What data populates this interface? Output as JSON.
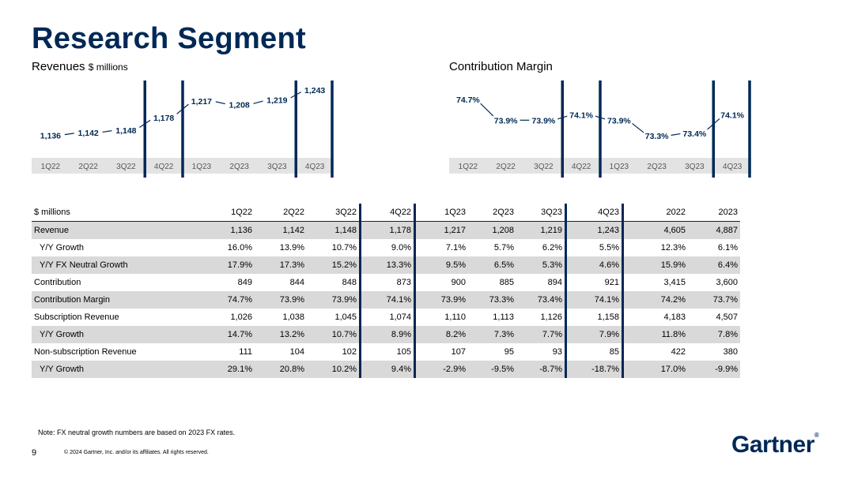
{
  "title": "Research Segment",
  "revenues_chart": {
    "label": "Revenues",
    "unit": "$ millions"
  },
  "margin_chart": {
    "label": "Contribution Margin"
  },
  "chart_data": [
    {
      "type": "line",
      "title": "Revenues $ millions",
      "categories": [
        "1Q22",
        "2Q22",
        "3Q22",
        "4Q22",
        "1Q23",
        "2Q23",
        "3Q23",
        "4Q23"
      ],
      "values": [
        1136,
        1142,
        1148,
        1178,
        1217,
        1208,
        1219,
        1243
      ],
      "data_labels": [
        "1,136",
        "1,142",
        "1,148",
        "1,178",
        "1,217",
        "1,208",
        "1,219",
        "1,243"
      ],
      "ylim": [
        1120,
        1250
      ]
    },
    {
      "type": "line",
      "title": "Contribution Margin",
      "categories": [
        "1Q22",
        "2Q22",
        "3Q22",
        "4Q22",
        "1Q23",
        "2Q23",
        "3Q23",
        "4Q23"
      ],
      "values": [
        74.7,
        73.9,
        73.9,
        74.1,
        73.9,
        73.3,
        73.4,
        74.1
      ],
      "data_labels": [
        "74.7%",
        "73.9%",
        "73.9%",
        "74.1%",
        "73.9%",
        "73.3%",
        "73.4%",
        "74.1%"
      ],
      "ylim": [
        73.0,
        75.0
      ]
    }
  ],
  "table": {
    "unit_label": "$ millions",
    "columns": [
      "1Q22",
      "2Q22",
      "3Q22",
      "4Q22",
      "1Q23",
      "2Q23",
      "3Q23",
      "4Q23",
      "2022",
      "2023"
    ],
    "rows": [
      {
        "label": "Revenue",
        "indent": false,
        "shade": true,
        "values": [
          "1,136",
          "1,142",
          "1,148",
          "1,178",
          "1,217",
          "1,208",
          "1,219",
          "1,243",
          "4,605",
          "4,887"
        ]
      },
      {
        "label": "Y/Y Growth",
        "indent": true,
        "shade": false,
        "values": [
          "16.0%",
          "13.9%",
          "10.7%",
          "9.0%",
          "7.1%",
          "5.7%",
          "6.2%",
          "5.5%",
          "12.3%",
          "6.1%"
        ]
      },
      {
        "label": "Y/Y FX Neutral Growth",
        "indent": true,
        "shade": true,
        "values": [
          "17.9%",
          "17.3%",
          "15.2%",
          "13.3%",
          "9.5%",
          "6.5%",
          "5.3%",
          "4.6%",
          "15.9%",
          "6.4%"
        ]
      },
      {
        "label": "Contribution",
        "indent": false,
        "shade": false,
        "values": [
          "849",
          "844",
          "848",
          "873",
          "900",
          "885",
          "894",
          "921",
          "3,415",
          "3,600"
        ]
      },
      {
        "label": "Contribution Margin",
        "indent": false,
        "shade": true,
        "values": [
          "74.7%",
          "73.9%",
          "73.9%",
          "74.1%",
          "73.9%",
          "73.3%",
          "73.4%",
          "74.1%",
          "74.2%",
          "73.7%"
        ]
      },
      {
        "label": "Subscription Revenue",
        "indent": false,
        "shade": false,
        "values": [
          "1,026",
          "1,038",
          "1,045",
          "1,074",
          "1,110",
          "1,113",
          "1,126",
          "1,158",
          "4,183",
          "4,507"
        ]
      },
      {
        "label": "Y/Y Growth",
        "indent": true,
        "shade": true,
        "values": [
          "14.7%",
          "13.2%",
          "10.7%",
          "8.9%",
          "8.2%",
          "7.3%",
          "7.7%",
          "7.9%",
          "11.8%",
          "7.8%"
        ]
      },
      {
        "label": "Non-subscription Revenue",
        "indent": false,
        "shade": false,
        "values": [
          "111",
          "104",
          "102",
          "105",
          "107",
          "95",
          "93",
          "85",
          "422",
          "380"
        ]
      },
      {
        "label": "Y/Y Growth",
        "indent": true,
        "shade": true,
        "values": [
          "29.1%",
          "20.8%",
          "10.2%",
          "9.4%",
          "-2.9%",
          "-9.5%",
          "-8.7%",
          "-18.7%",
          "17.0%",
          "-9.9%"
        ]
      }
    ]
  },
  "footer": {
    "note": "Note: FX neutral growth numbers are based on 2023 FX rates.",
    "page_number": "9",
    "copyright": "© 2024 Gartner, Inc. and/or its affiliates. All rights reserved.",
    "logo": "Gartner",
    "logo_mark": "®"
  }
}
